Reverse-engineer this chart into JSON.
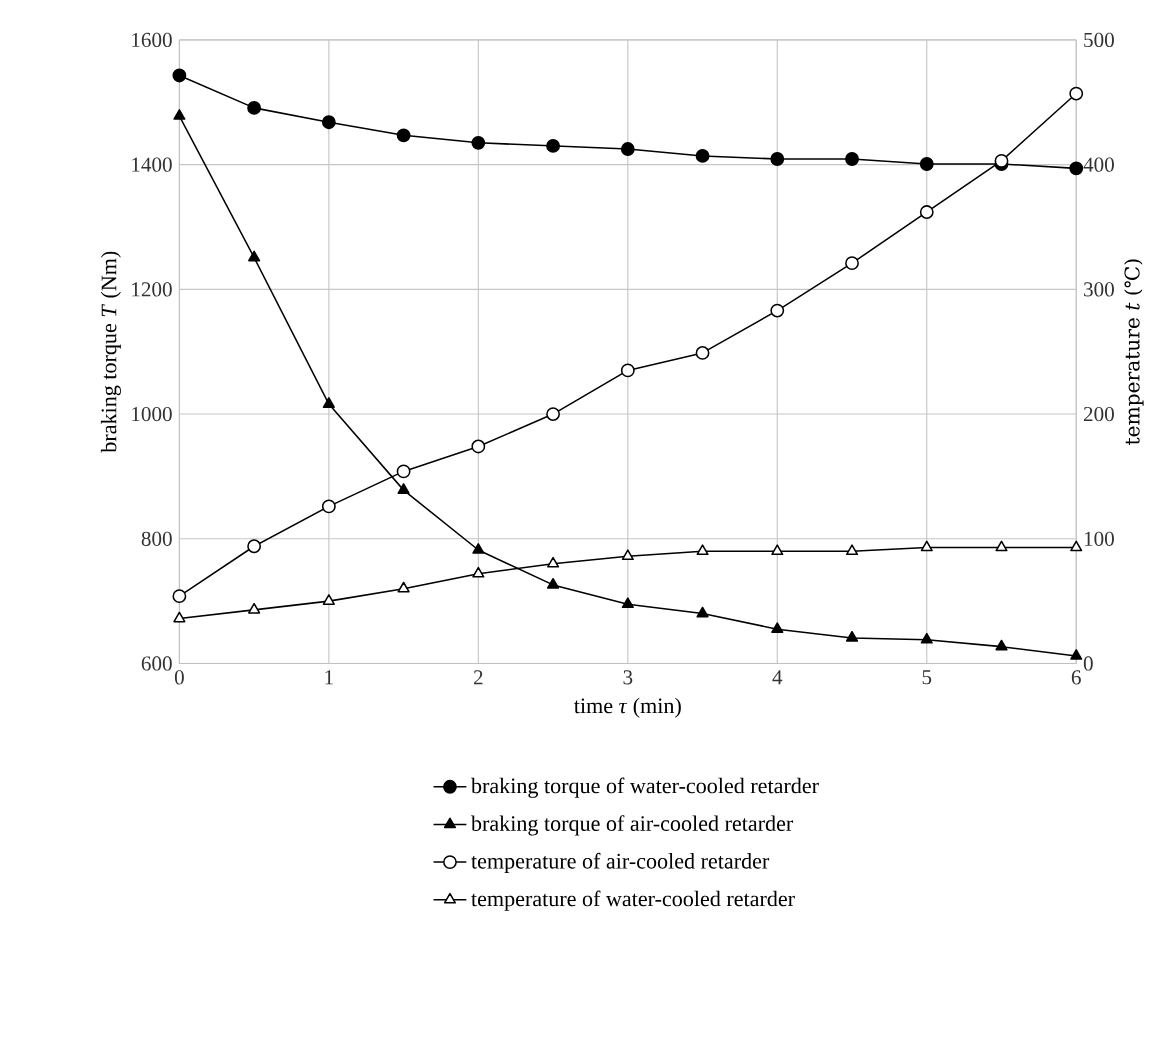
{
  "chart_data": {
    "type": "line",
    "xlabel": "time *τ* (min)",
    "ylabel": "braking torque  *T* (Nm)",
    "y2label": "temperature  *t* (℃)",
    "x": [
      0,
      0.5,
      1,
      1.5,
      2,
      2.5,
      3,
      3.5,
      4,
      4.5,
      5,
      5.5,
      6
    ],
    "series": [
      {
        "name": "braking torque of water-cooled retarder",
        "color": "#000000",
        "marker": "circle",
        "values": [
          1543,
          1491,
          1468,
          1447,
          1435,
          1430,
          1425,
          1414,
          1409,
          1409,
          1401,
          1401,
          1394
        ]
      },
      {
        "name": "braking torque of air-cooled retarder",
        "color": "#000000",
        "marker": "triangle",
        "values": [
          1478,
          1251,
          1016,
          878,
          782,
          726,
          695,
          680,
          655,
          641,
          638,
          627,
          612
        ]
      },
      {
        "name": "temperature of air-cooled retarder",
        "color": "#000000",
        "marker": "circle",
        "axis": "y2",
        "values": [
          54,
          94,
          126,
          154,
          174,
          200,
          235,
          249,
          283,
          321,
          362,
          403,
          457
        ]
      },
      {
        "name": "temperature of water-cooled retarder",
        "color": "#000000",
        "marker": "triangle",
        "axis": "y2",
        "values": [
          36,
          43,
          50,
          60,
          72,
          80,
          86,
          90,
          90,
          90,
          93,
          93,
          93
        ]
      }
    ],
    "xlim": [
      0,
      6
    ],
    "xticks": [
      0,
      1,
      2,
      3,
      4,
      5,
      6
    ],
    "ylim": [
      600,
      1600
    ],
    "yticks": [
      600,
      800,
      1000,
      1200,
      1400,
      1600
    ],
    "y2lim": [
      0,
      500
    ],
    "y2ticks": [
      0,
      100,
      200,
      300,
      400,
      500
    ],
    "grid": true,
    "legend": "bottom",
    "line_style": "solid"
  }
}
